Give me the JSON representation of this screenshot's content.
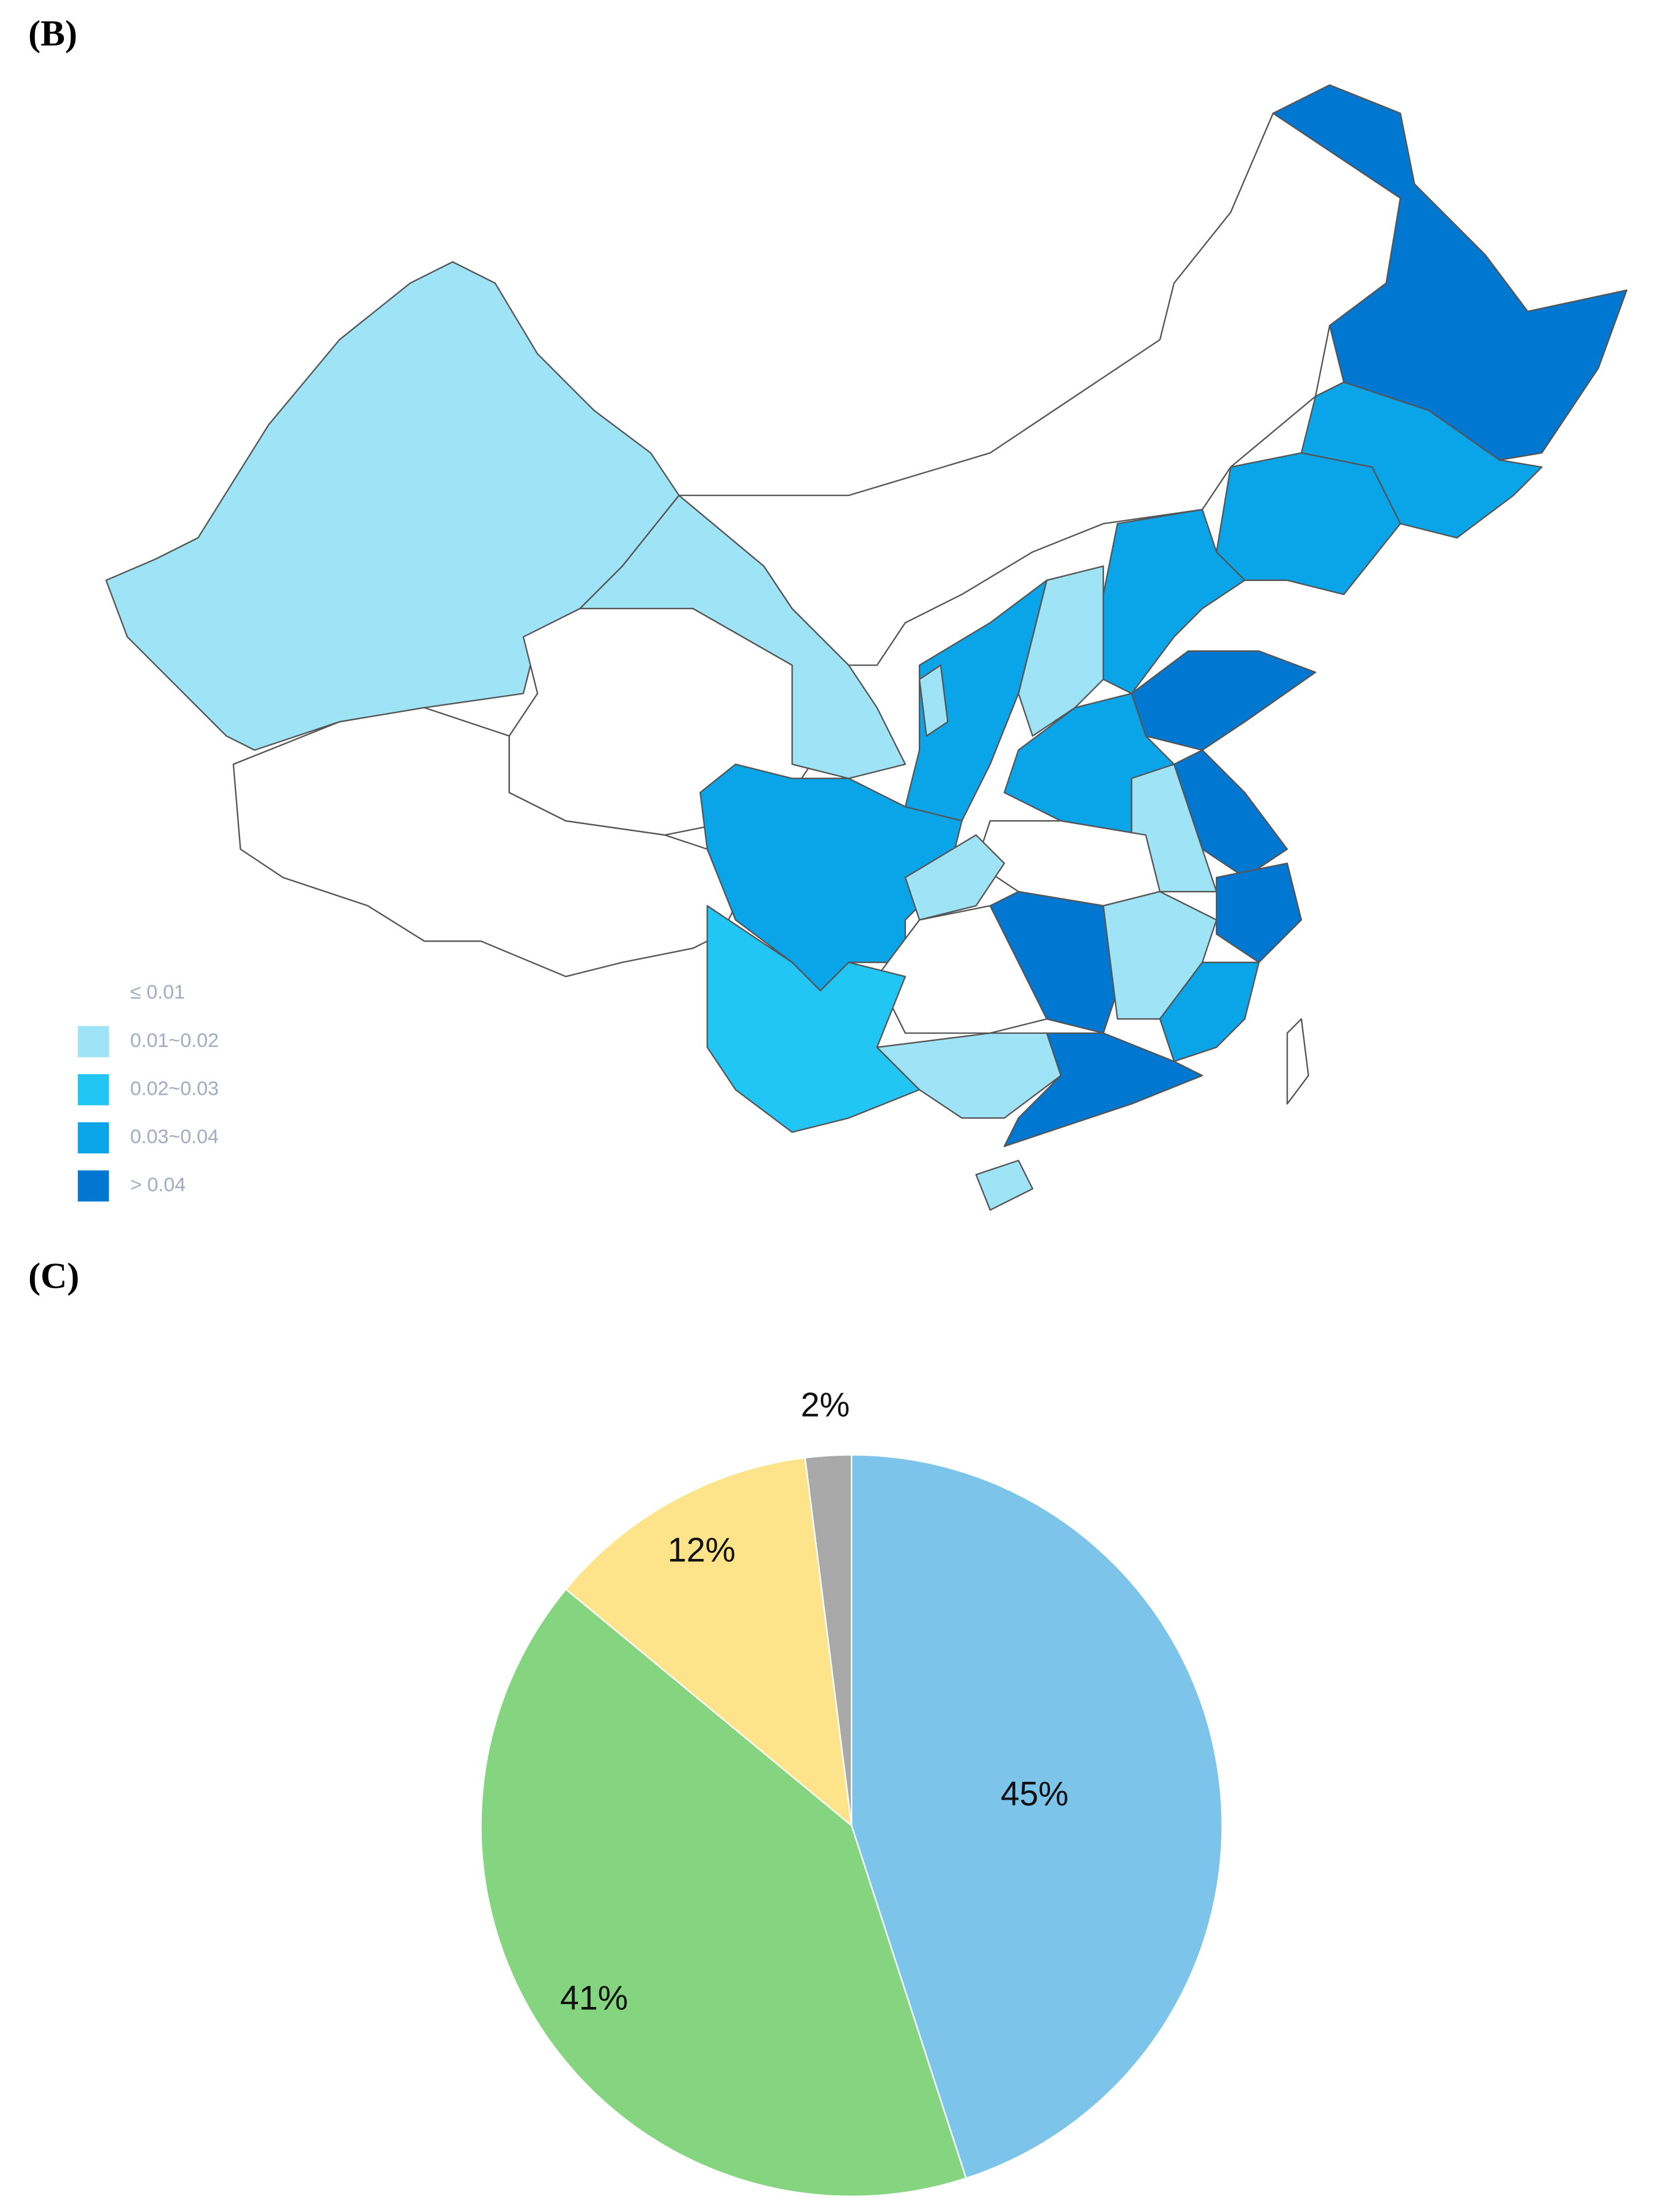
{
  "chart_data": [
    {
      "type": "map",
      "panel_label": "(B)",
      "legend": [
        {
          "label": "≤ 0.01",
          "color": "#ffffff"
        },
        {
          "label": "0.01~0.02",
          "color": "#9fe3f7"
        },
        {
          "label": "0.02~0.03",
          "color": "#22c6f5"
        },
        {
          "label": "0.03~0.04",
          "color": "#0aa5e8"
        },
        {
          "label": "> 0.04",
          "color": "#0077d0"
        }
      ]
    },
    {
      "type": "pie",
      "panel_label": "(C)",
      "values": [
        45,
        41,
        12,
        2
      ],
      "value_labels": [
        "45%",
        "41%",
        "12%",
        "2%"
      ],
      "colors": [
        "#7dc4ea",
        "#84d480",
        "#fde38a",
        "#a9a9a9"
      ]
    }
  ]
}
